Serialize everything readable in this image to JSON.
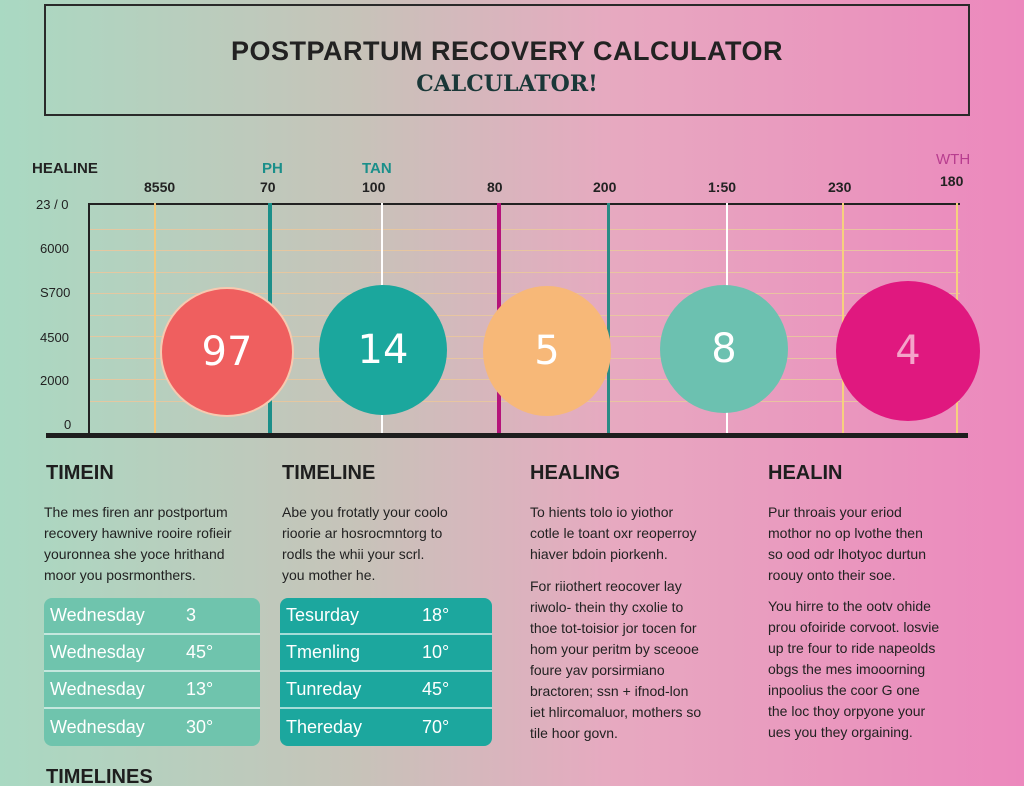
{
  "header": {
    "title": "POSTPARTUM RECOVERY CALCULATOR",
    "subtitle": "CALCULATOR!"
  },
  "chart_top_labels": {
    "left": "HEALINE",
    "ph": "PH",
    "tan": "TAN",
    "with": "WTH"
  },
  "top_axis": [
    "8550",
    "70",
    "100",
    "80",
    "200",
    "1:50",
    "230",
    "180"
  ],
  "y_axis": [
    "23 / 0",
    "6000",
    "S700",
    "4500",
    "2000",
    "0"
  ],
  "circles": [
    {
      "label": "97",
      "color": "#ef5f5f"
    },
    {
      "label": "14",
      "color": "#1ba79d"
    },
    {
      "label": "5",
      "color": "#f7b878"
    },
    {
      "label": "8",
      "color": "#6cc1b0"
    },
    {
      "label": "4",
      "color": "#e0187f"
    }
  ],
  "sections": [
    {
      "heading": "TIMEIN",
      "lines": [
        "The mes firen anr postportum",
        "recovery hawnive rooire rofieir",
        "youronnea she yoce hrithand",
        "moor you posrmonthers."
      ]
    },
    {
      "heading": "TIMELINE",
      "lines": [
        "Abe you frotatly your coolo",
        "rioorie ar hosrocmntorg to",
        "rodls the whii your scrl.",
        "you mother he."
      ]
    },
    {
      "heading": "HEALING",
      "lines": [
        "To hients tolo io yiothor",
        "cotle le toant oxr reoperroy",
        "hiaver bdoin piorkenh."
      ],
      "lines2": [
        "For riiothert reocover lay",
        "riwolo- thein thy cxolie to",
        "thoe tot-toisior jor tocen for",
        "hom your peritm  by sceooe",
        "foure yav porsirmiano",
        "bractoren; ssn + ifnod-lon",
        "iet hlircomaluor, mothers so",
        "tile hoor govn."
      ]
    },
    {
      "heading": "HEALIN",
      "lines": [
        "Pur throais your eriod",
        "mothor no op lvothe then",
        "so ood odr lhotyoc durtun",
        "roouy onto their soe."
      ],
      "lines2": [
        "You hirre to the ootv ohide",
        "prou ofoiride corvoot. losvie",
        "up tre four to ride napeolds",
        "obgs the mes imooorning",
        "inpoolius the coor G one",
        "the loc thoy orpyone your",
        "ues you they orgaining."
      ]
    }
  ],
  "table_left": [
    {
      "day": "Wednesday",
      "val": "3"
    },
    {
      "day": "Wednesday",
      "val": "45°"
    },
    {
      "day": "Wednesday",
      "val": "13°"
    },
    {
      "day": "Wednesday",
      "val": "30°"
    }
  ],
  "table_right": [
    {
      "day": "Tesurday",
      "val": "18°"
    },
    {
      "day": "Tmenling",
      "val": "10°"
    },
    {
      "day": "Tunreday",
      "val": "45°"
    },
    {
      "day": "Thereday",
      "val": "70°"
    }
  ],
  "bottom_heading": "TIMELINES"
}
